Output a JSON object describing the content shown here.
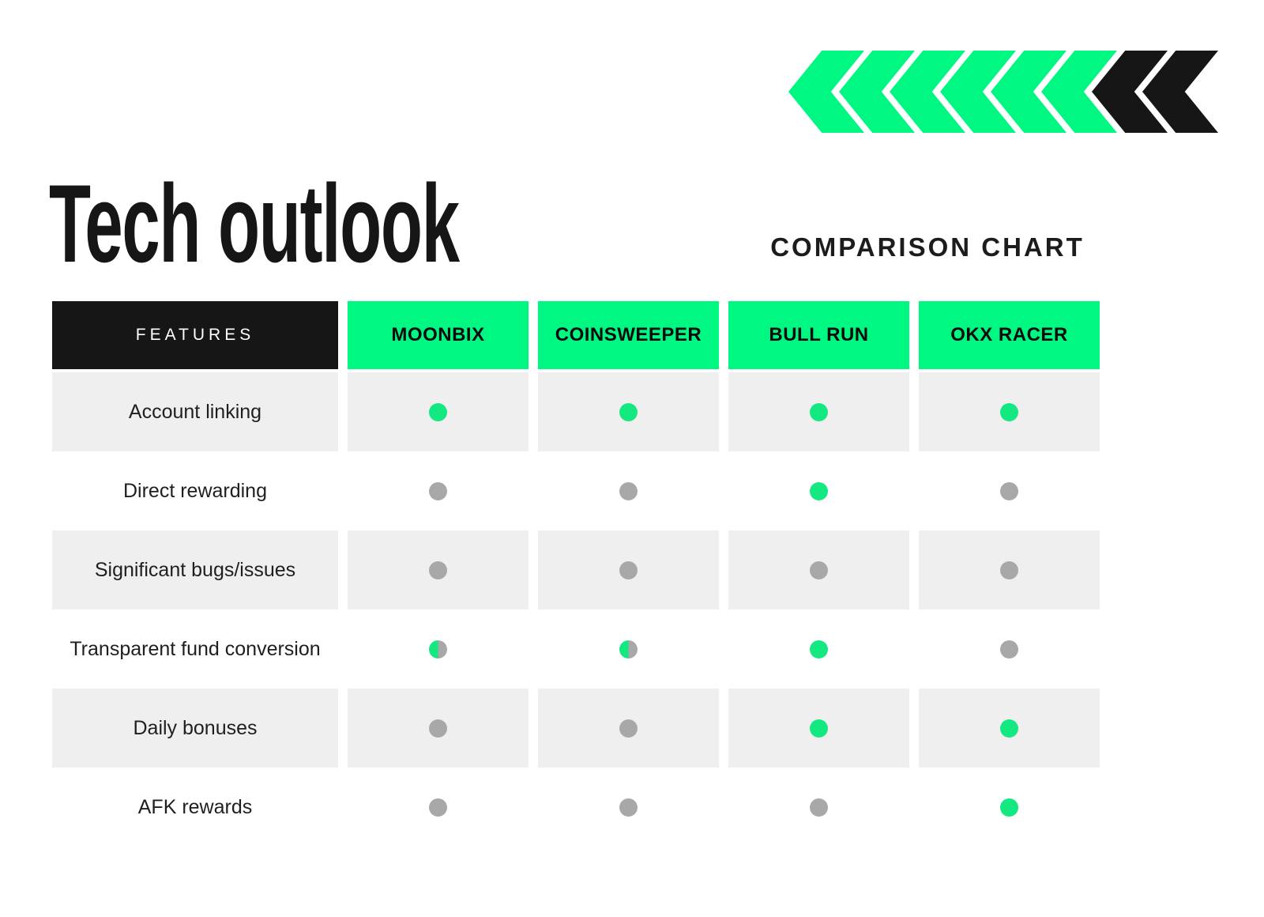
{
  "title": "Tech outlook",
  "subtitle": "COMPARISON CHART",
  "decoration": {
    "chevrons": [
      "green",
      "green",
      "green",
      "green",
      "green",
      "green",
      "black",
      "black"
    ],
    "direction": "left"
  },
  "colors": {
    "accent_green": "#00F781",
    "dot_green": "#14E881",
    "dot_gray": "#A8A8A8",
    "row_gray": "#EFEFEF",
    "ink_black": "#161616"
  },
  "chart_data": {
    "type": "table",
    "title": "Tech outlook",
    "subtitle": "COMPARISON CHART",
    "columns": [
      "FEATURES",
      "MOONBIX",
      "COINSWEEPER",
      "BULL RUN",
      "OKX RACER"
    ],
    "rows": [
      {
        "feature": "Account linking",
        "dots": [
          "green",
          "green",
          "green",
          "green"
        ]
      },
      {
        "feature": "Direct rewarding",
        "dots": [
          "gray",
          "gray",
          "green",
          "gray"
        ]
      },
      {
        "feature": "Significant bugs/issues",
        "dots": [
          "gray",
          "gray",
          "gray",
          "gray"
        ]
      },
      {
        "feature": "Transparent fund conversion",
        "dots": [
          "split",
          "split",
          "green",
          "gray"
        ]
      },
      {
        "feature": "Daily bonuses",
        "dots": [
          "gray",
          "gray",
          "green",
          "green"
        ]
      },
      {
        "feature": "AFK rewards",
        "dots": [
          "gray",
          "gray",
          "gray",
          "green"
        ]
      }
    ],
    "dot_legend_visual": {
      "green": "solid green dot",
      "gray": "solid gray dot",
      "split": "half green / half gray dot"
    },
    "layout": {
      "shaded_row_indexes": [
        0,
        2,
        4
      ],
      "grid": "off",
      "legend": "none"
    }
  }
}
